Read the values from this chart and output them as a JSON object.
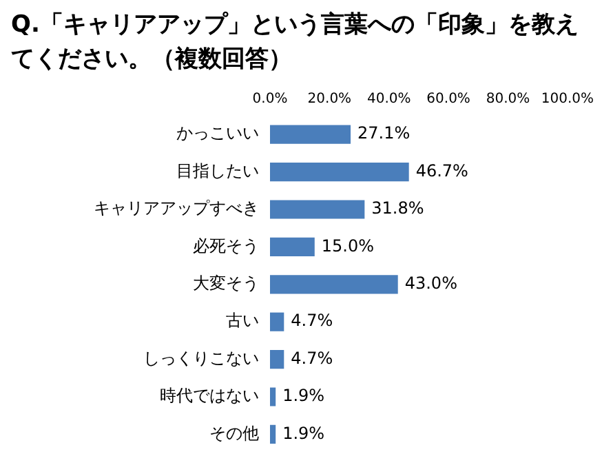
{
  "chart_data": {
    "type": "bar",
    "orientation": "horizontal",
    "title": "Q.「キャリアアップ」という言葉への「印象」を教えてください。（複数回答）",
    "categories": [
      "かっこいい",
      "目指したい",
      "キャリアアップすべき",
      "必死そう",
      "大変そう",
      "古い",
      "しっくりこない",
      "時代ではない",
      "その他"
    ],
    "values": [
      27.1,
      46.7,
      31.8,
      15.0,
      43.0,
      4.7,
      4.7,
      1.9,
      1.9
    ],
    "value_labels": [
      "27.1%",
      "46.7%",
      "31.8%",
      "15.0%",
      "43.0%",
      "4.7%",
      "4.7%",
      "1.9%",
      "1.9%"
    ],
    "color": "#4a7ebb",
    "xlim": [
      0,
      100
    ],
    "xticks": [
      {
        "value": 0,
        "label": "0.0%"
      },
      {
        "value": 20,
        "label": "20.0%"
      },
      {
        "value": 40,
        "label": "40.0%"
      },
      {
        "value": 60,
        "label": "60.0%"
      },
      {
        "value": 80,
        "label": "80.0%"
      },
      {
        "value": 100,
        "label": "100.0%"
      }
    ],
    "grid": false,
    "legend": false
  }
}
